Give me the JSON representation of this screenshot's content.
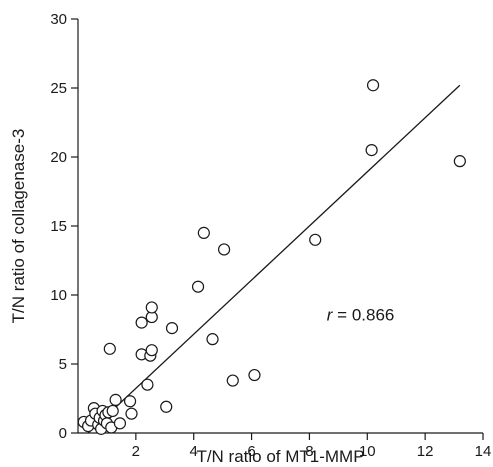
{
  "chart_data": {
    "type": "scatter",
    "xlabel": "T/N ratio of MT1-MMP",
    "ylabel": "T/N ratio of collagenase-3",
    "xlim": [
      0,
      14
    ],
    "ylim": [
      0,
      30
    ],
    "x_ticks": [
      2,
      4,
      6,
      8,
      10,
      12,
      14
    ],
    "x_tick_labels": [
      "2",
      "4",
      "6",
      "8",
      "10",
      "12",
      "14"
    ],
    "y_ticks": [
      0,
      5,
      10,
      15,
      20,
      25,
      30
    ],
    "y_tick_labels": [
      "0",
      "5",
      "10",
      "15",
      "20",
      "25",
      "30"
    ],
    "grid": false,
    "annotation": {
      "label": "r",
      "text": " = 0.866",
      "x": 8.6,
      "y": 8.6
    },
    "fit_line": {
      "x": [
        0.35,
        13.2
      ],
      "y": [
        0.0,
        25.2
      ]
    },
    "points": [
      {
        "x": 0.2,
        "y": 0.8
      },
      {
        "x": 0.35,
        "y": 0.5
      },
      {
        "x": 0.45,
        "y": 0.9
      },
      {
        "x": 0.55,
        "y": 1.8
      },
      {
        "x": 0.6,
        "y": 1.4
      },
      {
        "x": 0.7,
        "y": 0.6
      },
      {
        "x": 0.75,
        "y": 1.1
      },
      {
        "x": 0.8,
        "y": 0.3
      },
      {
        "x": 0.85,
        "y": 1.6
      },
      {
        "x": 0.9,
        "y": 0.9
      },
      {
        "x": 0.95,
        "y": 1.3
      },
      {
        "x": 1.0,
        "y": 0.7
      },
      {
        "x": 1.05,
        "y": 1.5
      },
      {
        "x": 1.1,
        "y": 6.1
      },
      {
        "x": 1.15,
        "y": 0.4
      },
      {
        "x": 1.2,
        "y": 1.6
      },
      {
        "x": 1.3,
        "y": 2.4
      },
      {
        "x": 1.45,
        "y": 0.7
      },
      {
        "x": 1.8,
        "y": 2.3
      },
      {
        "x": 1.85,
        "y": 1.4
      },
      {
        "x": 2.2,
        "y": 5.7
      },
      {
        "x": 2.2,
        "y": 8.0
      },
      {
        "x": 2.4,
        "y": 3.5
      },
      {
        "x": 2.5,
        "y": 5.6
      },
      {
        "x": 2.55,
        "y": 6.0
      },
      {
        "x": 2.55,
        "y": 8.4
      },
      {
        "x": 2.55,
        "y": 9.1
      },
      {
        "x": 3.05,
        "y": 1.9
      },
      {
        "x": 3.25,
        "y": 7.6
      },
      {
        "x": 4.15,
        "y": 10.6
      },
      {
        "x": 4.35,
        "y": 14.5
      },
      {
        "x": 4.65,
        "y": 6.8
      },
      {
        "x": 5.05,
        "y": 13.3
      },
      {
        "x": 5.35,
        "y": 3.8
      },
      {
        "x": 6.1,
        "y": 4.2
      },
      {
        "x": 8.2,
        "y": 14.0
      },
      {
        "x": 10.15,
        "y": 20.5
      },
      {
        "x": 10.2,
        "y": 25.2
      },
      {
        "x": 13.2,
        "y": 19.7
      }
    ]
  }
}
